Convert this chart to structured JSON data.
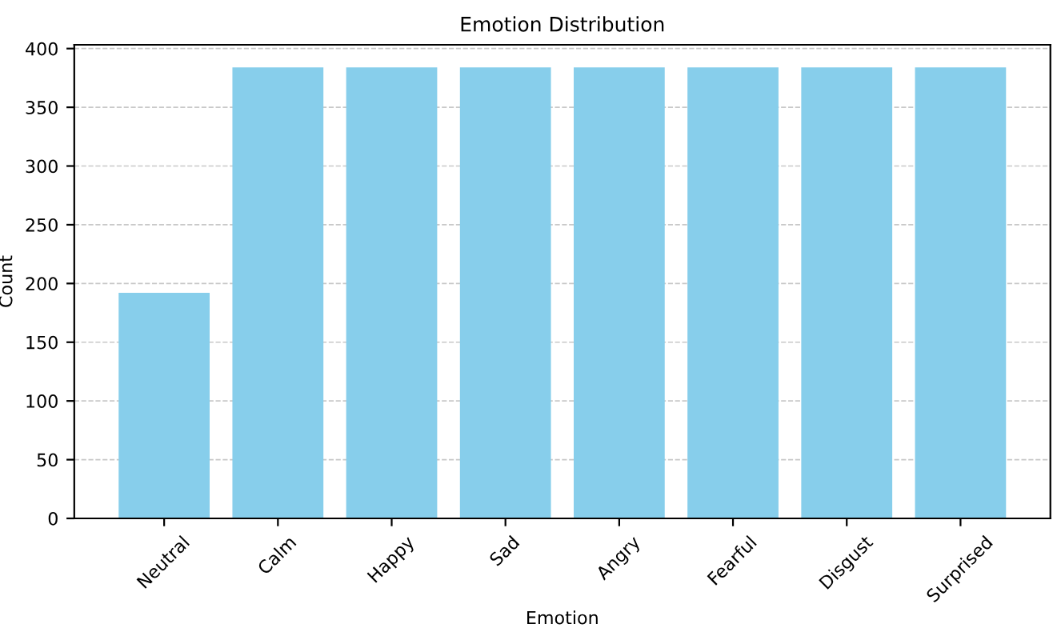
{
  "chart_data": {
    "type": "bar",
    "title": "Emotion Distribution",
    "xlabel": "Emotion",
    "ylabel": "Count",
    "categories": [
      "Neutral",
      "Calm",
      "Happy",
      "Sad",
      "Angry",
      "Fearful",
      "Disgust",
      "Surprised"
    ],
    "values": [
      192,
      384,
      384,
      384,
      384,
      384,
      384,
      384
    ],
    "color": "#87ceeb",
    "ylim": [
      0,
      403.2
    ],
    "yticks": [
      0,
      50,
      100,
      150,
      200,
      250,
      300,
      350,
      400
    ],
    "grid": "y",
    "line_style": "dashed"
  }
}
